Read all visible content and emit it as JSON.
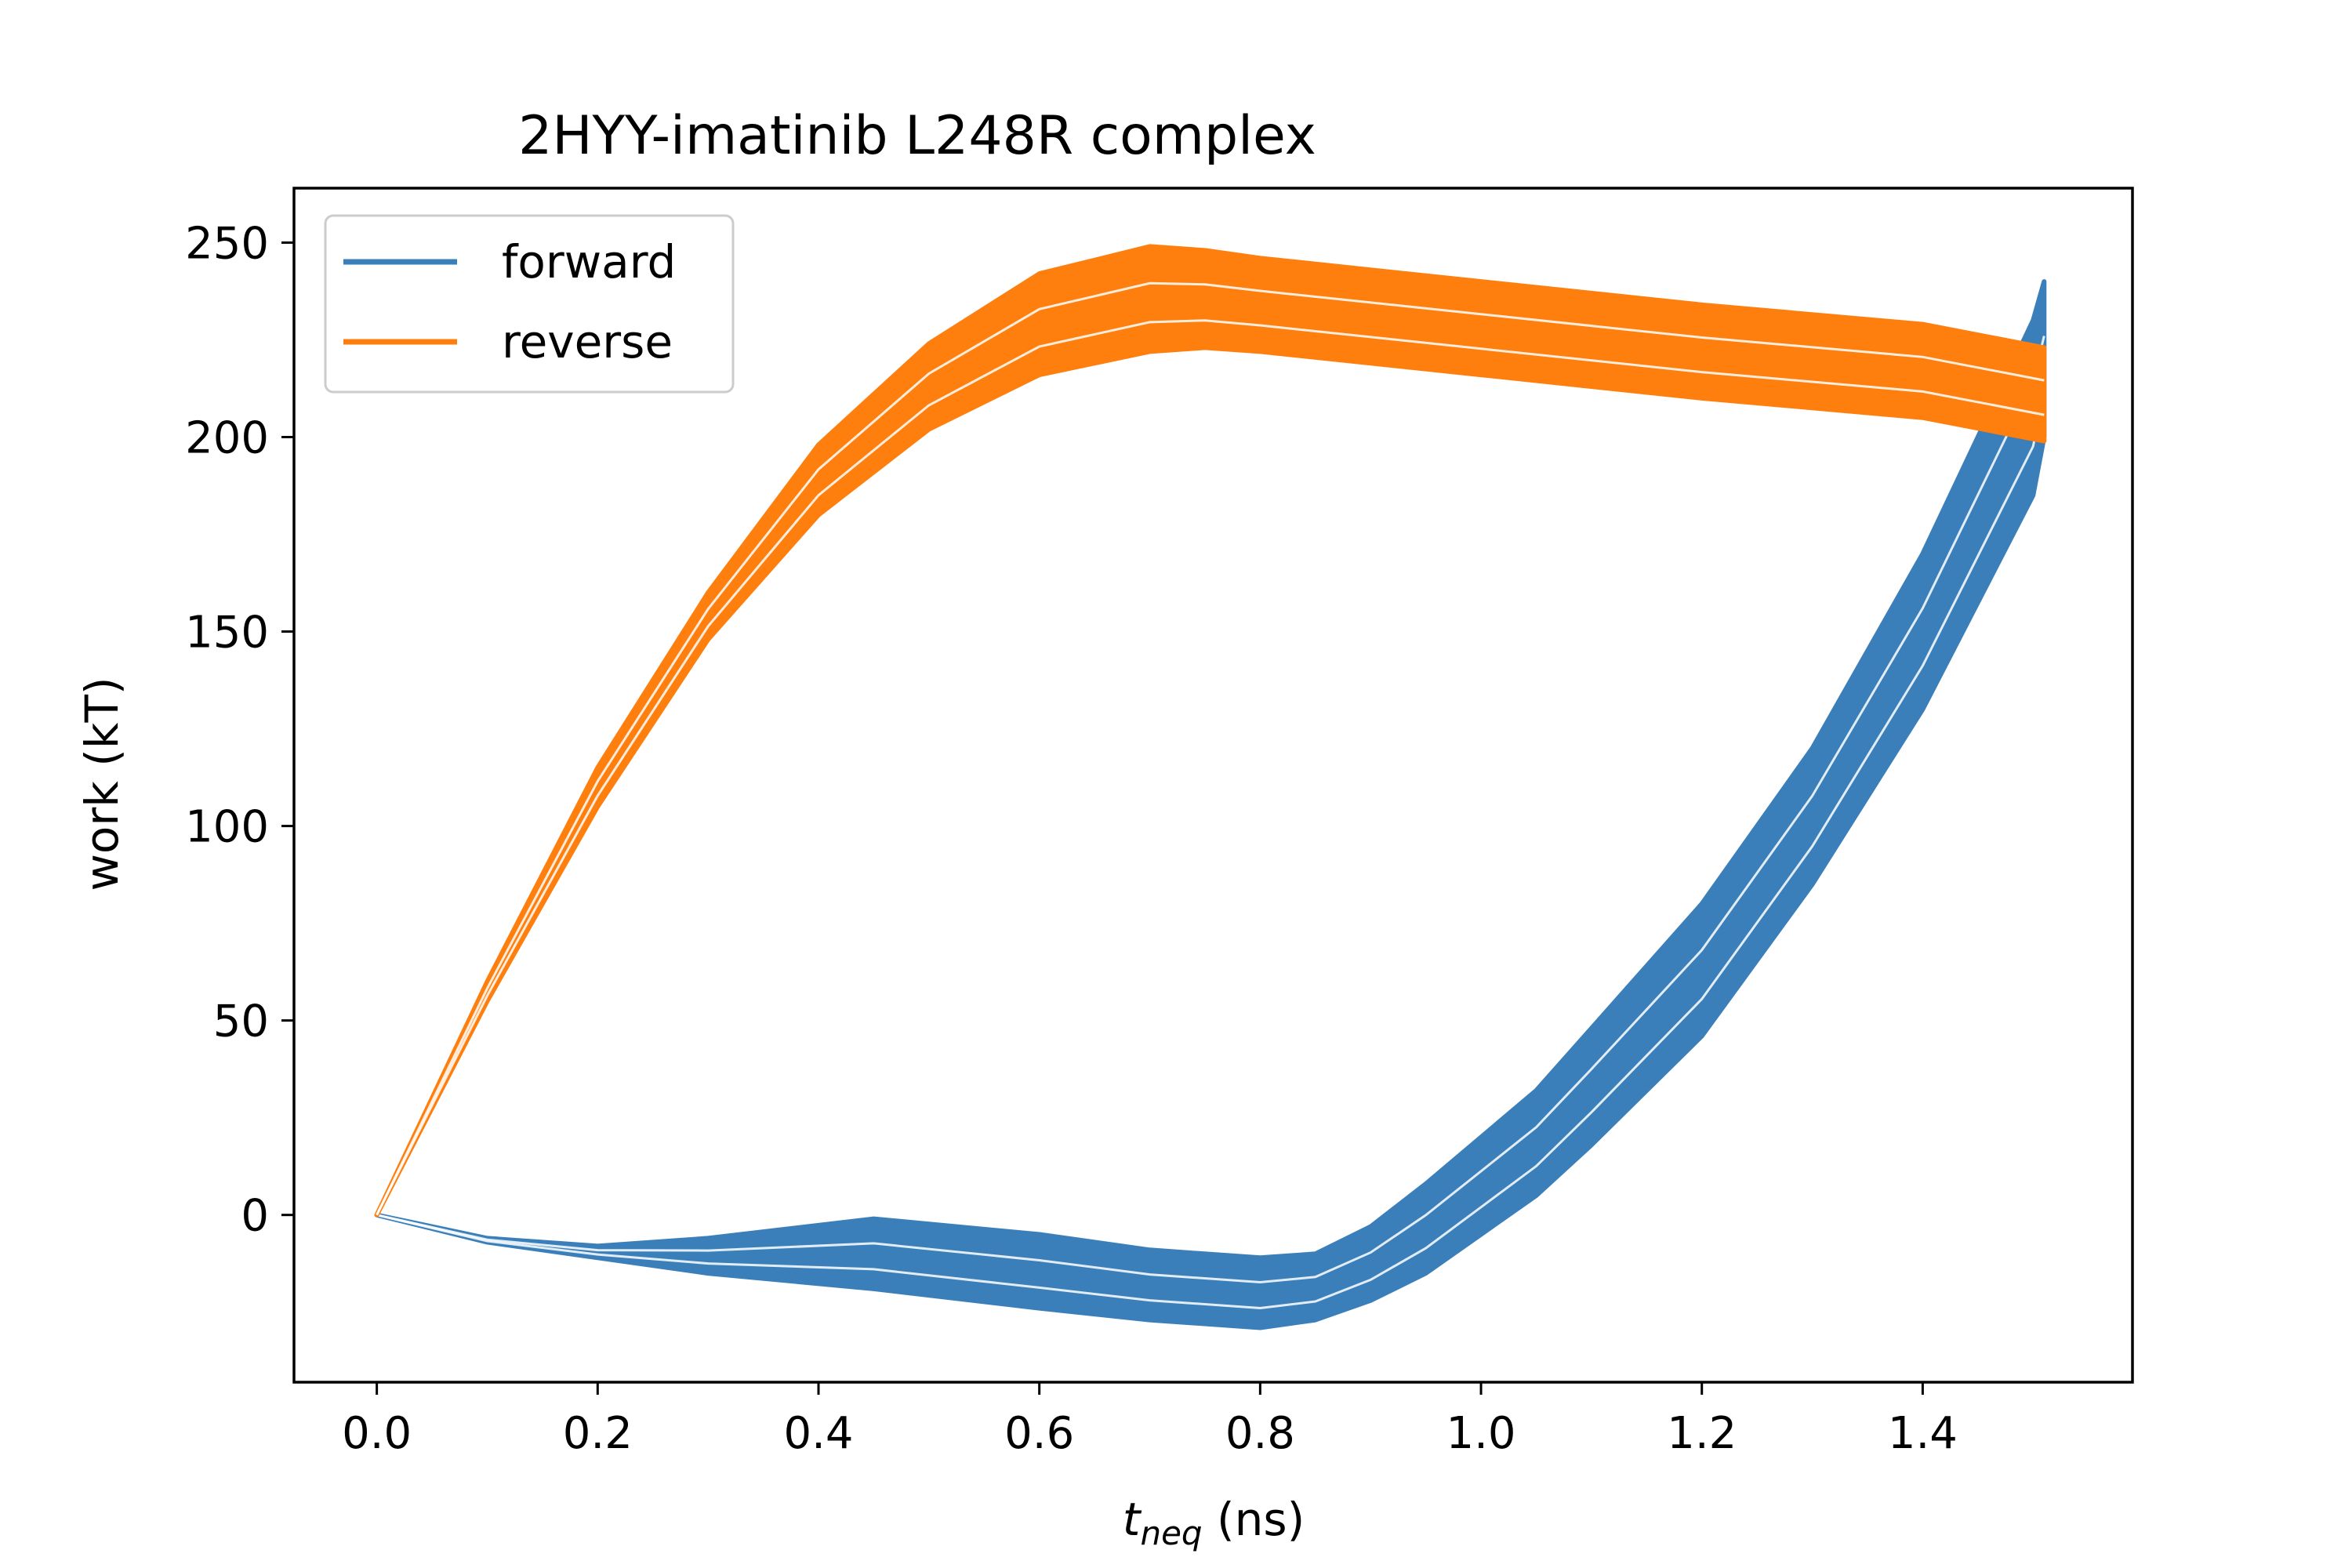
{
  "chart_data": {
    "type": "line",
    "title": "2HYY-imatinib L248R complex",
    "xlabel": {
      "main": "t",
      "sub": "neq",
      "unit": " (ns)"
    },
    "ylabel": "work (kT)",
    "xlim": [
      -0.075,
      1.59
    ],
    "ylim": [
      -43,
      264
    ],
    "xticks": [
      0.0,
      0.2,
      0.4,
      0.6,
      0.8,
      1.0,
      1.2,
      1.4
    ],
    "xtick_labels": [
      "0.0",
      "0.2",
      "0.4",
      "0.6",
      "0.8",
      "1.0",
      "1.2",
      "1.4"
    ],
    "yticks": [
      0,
      50,
      100,
      150,
      200,
      250
    ],
    "ytick_labels": [
      "0",
      "50",
      "100",
      "150",
      "200",
      "250"
    ],
    "grid": false,
    "legend": {
      "placement": "upper-left",
      "entries": [
        "forward",
        "reverse"
      ]
    },
    "colors": {
      "forward": "#3a7fba",
      "reverse": "#ff7f0e"
    },
    "series": [
      {
        "name": "forward",
        "band_upper": {
          "x": [
            0.0,
            0.1,
            0.2,
            0.3,
            0.45,
            0.6,
            0.7,
            0.8,
            0.85,
            0.9,
            0.95,
            1.0,
            1.05,
            1.1,
            1.2,
            1.3,
            1.4,
            1.5,
            1.51
          ],
          "y": [
            0,
            -6,
            -8,
            -6,
            -1,
            -5,
            -9,
            -11,
            -10,
            -3,
            8,
            20,
            32,
            48,
            80,
            120,
            170,
            230,
            240
          ]
        },
        "band_lower": {
          "x": [
            0.0,
            0.1,
            0.2,
            0.3,
            0.45,
            0.6,
            0.7,
            0.8,
            0.85,
            0.9,
            0.95,
            1.0,
            1.05,
            1.1,
            1.2,
            1.3,
            1.4,
            1.5,
            1.51
          ],
          "y": [
            0,
            -7,
            -11,
            -15,
            -19,
            -24,
            -27,
            -29,
            -27,
            -22,
            -15,
            -5,
            5,
            18,
            46,
            85,
            130,
            185,
            200
          ]
        }
      },
      {
        "name": "reverse",
        "band_upper": {
          "x": [
            0.0,
            0.1,
            0.2,
            0.3,
            0.4,
            0.5,
            0.6,
            0.7,
            0.75,
            0.8,
            1.0,
            1.2,
            1.4,
            1.51
          ],
          "y": [
            0,
            60,
            115,
            160,
            198,
            224,
            242,
            249,
            248,
            246,
            240,
            234,
            229,
            223
          ]
        },
        "band_lower": {
          "x": [
            0.0,
            0.1,
            0.2,
            0.3,
            0.4,
            0.5,
            0.6,
            0.7,
            0.75,
            0.8,
            1.0,
            1.2,
            1.4,
            1.51
          ],
          "y": [
            0,
            55,
            105,
            148,
            180,
            202,
            216,
            222,
            223,
            222,
            216,
            210,
            205,
            199
          ]
        }
      }
    ]
  }
}
